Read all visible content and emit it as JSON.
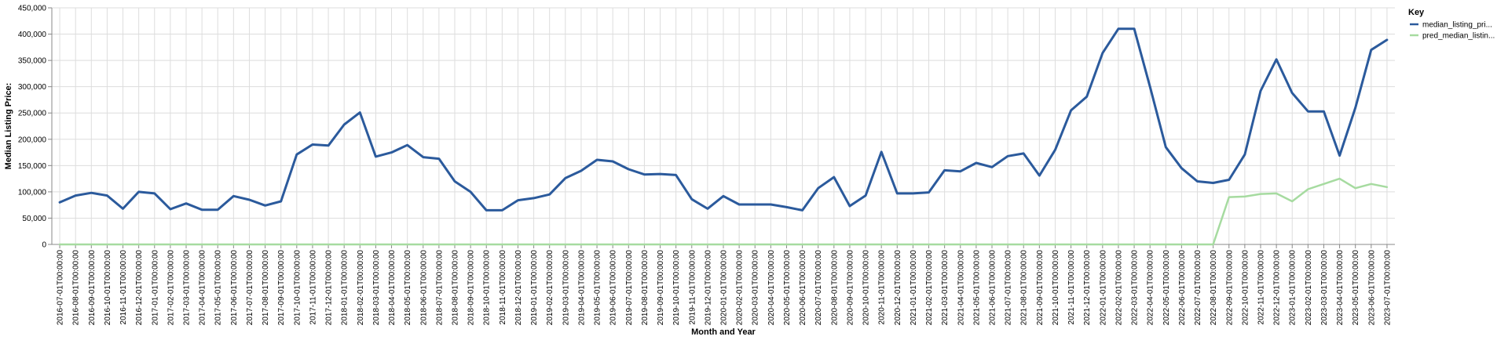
{
  "chart_data": {
    "type": "line",
    "xlabel": "Month and Year",
    "ylabel": "Median Listing Price:",
    "ylim": [
      0,
      450000
    ],
    "y_ticks": [
      "0",
      "50,000",
      "100,000",
      "150,000",
      "200,000",
      "250,000",
      "300,000",
      "350,000",
      "400,000",
      "450,000"
    ],
    "legend": {
      "title": "Key",
      "position": "top-right"
    },
    "grid": true,
    "categories": [
      "2016-07-01T00:00:00",
      "2016-08-01T00:00:00",
      "2016-09-01T00:00:00",
      "2016-10-01T00:00:00",
      "2016-11-01T00:00:00",
      "2016-12-01T00:00:00",
      "2017-01-01T00:00:00",
      "2017-02-01T00:00:00",
      "2017-03-01T00:00:00",
      "2017-04-01T00:00:00",
      "2017-05-01T00:00:00",
      "2017-06-01T00:00:00",
      "2017-07-01T00:00:00",
      "2017-08-01T00:00:00",
      "2017-09-01T00:00:00",
      "2017-10-01T00:00:00",
      "2017-11-01T00:00:00",
      "2017-12-01T00:00:00",
      "2018-01-01T00:00:00",
      "2018-02-01T00:00:00",
      "2018-03-01T00:00:00",
      "2018-04-01T00:00:00",
      "2018-05-01T00:00:00",
      "2018-06-01T00:00:00",
      "2018-07-01T00:00:00",
      "2018-08-01T00:00:00",
      "2018-09-01T00:00:00",
      "2018-10-01T00:00:00",
      "2018-11-01T00:00:00",
      "2018-12-01T00:00:00",
      "2019-01-01T00:00:00",
      "2019-02-01T00:00:00",
      "2019-03-01T00:00:00",
      "2019-04-01T00:00:00",
      "2019-05-01T00:00:00",
      "2019-06-01T00:00:00",
      "2019-07-01T00:00:00",
      "2019-08-01T00:00:00",
      "2019-09-01T00:00:00",
      "2019-10-01T00:00:00",
      "2019-11-01T00:00:00",
      "2019-12-01T00:00:00",
      "2020-01-01T00:00:00",
      "2020-02-01T00:00:00",
      "2020-03-01T00:00:00",
      "2020-04-01T00:00:00",
      "2020-05-01T00:00:00",
      "2020-06-01T00:00:00",
      "2020-07-01T00:00:00",
      "2020-08-01T00:00:00",
      "2020-09-01T00:00:00",
      "2020-10-01T00:00:00",
      "2020-11-01T00:00:00",
      "2020-12-01T00:00:00",
      "2021-01-01T00:00:00",
      "2021-02-01T00:00:00",
      "2021-03-01T00:00:00",
      "2021-04-01T00:00:00",
      "2021-05-01T00:00:00",
      "2021-06-01T00:00:00",
      "2021-07-01T00:00:00",
      "2021-08-01T00:00:00",
      "2021-09-01T00:00:00",
      "2021-10-01T00:00:00",
      "2021-11-01T00:00:00",
      "2021-12-01T00:00:00",
      "2022-01-01T00:00:00",
      "2022-02-01T00:00:00",
      "2022-03-01T00:00:00",
      "2022-04-01T00:00:00",
      "2022-05-01T00:00:00",
      "2022-06-01T00:00:00",
      "2022-07-01T00:00:00",
      "2022-08-01T00:00:00",
      "2022-09-01T00:00:00",
      "2022-10-01T00:00:00",
      "2022-11-01T00:00:00",
      "2022-12-01T00:00:00",
      "2023-01-01T00:00:00",
      "2023-02-01T00:00:00",
      "2023-03-01T00:00:00",
      "2023-04-01T00:00:00",
      "2023-05-01T00:00:00",
      "2023-06-01T00:00:00",
      "2023-07-01T00:00:00"
    ],
    "series": [
      {
        "name": "median_listing_pri...",
        "color": "#2b5a9c",
        "values": [
          80000,
          93000,
          98000,
          93000,
          68000,
          100000,
          97000,
          67000,
          78000,
          66000,
          66000,
          92000,
          85000,
          74000,
          82000,
          171000,
          190000,
          188000,
          228000,
          251000,
          167000,
          175000,
          189000,
          166000,
          163000,
          120000,
          100000,
          65000,
          65000,
          84000,
          88000,
          95000,
          126000,
          140000,
          161000,
          158000,
          143000,
          133000,
          134000,
          132000,
          86000,
          68000,
          92000,
          76000,
          76000,
          76000,
          71000,
          65000,
          107000,
          128000,
          73000,
          93000,
          176000,
          97000,
          97000,
          99000,
          141000,
          139000,
          155000,
          147000,
          168000,
          173000,
          131000,
          180000,
          255000,
          281000,
          364000,
          410000,
          410000,
          300000,
          185000,
          145000,
          120000,
          117000,
          123000,
          171000,
          292000,
          352000,
          288000,
          253000,
          253000,
          169000,
          260000,
          370000,
          389000
        ]
      },
      {
        "name": "pred_median_listin...",
        "color": "#a6dba0",
        "values": [
          0,
          0,
          0,
          0,
          0,
          0,
          0,
          0,
          0,
          0,
          0,
          0,
          0,
          0,
          0,
          0,
          0,
          0,
          0,
          0,
          0,
          0,
          0,
          0,
          0,
          0,
          0,
          0,
          0,
          0,
          0,
          0,
          0,
          0,
          0,
          0,
          0,
          0,
          0,
          0,
          0,
          0,
          0,
          0,
          0,
          0,
          0,
          0,
          0,
          0,
          0,
          0,
          0,
          0,
          0,
          0,
          0,
          0,
          0,
          0,
          0,
          0,
          0,
          0,
          0,
          0,
          0,
          0,
          0,
          0,
          0,
          0,
          0,
          0,
          90000,
          91000,
          96000,
          97000,
          82000,
          105000,
          115000,
          125000,
          107000,
          115000,
          109000
        ]
      }
    ]
  }
}
